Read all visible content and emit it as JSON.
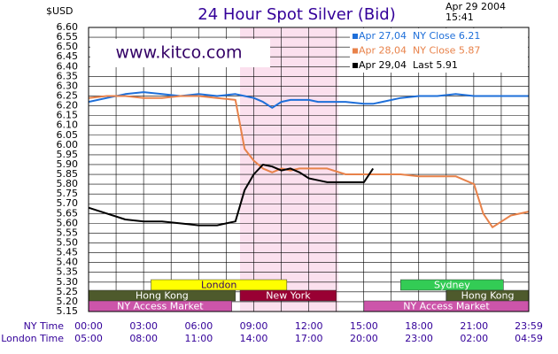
{
  "chart_data": {
    "type": "line",
    "title": "24 Hour Spot Silver (Bid)",
    "unit": "$USD",
    "date": "Apr 29 2004",
    "time": "15:41",
    "watermark": "www.kitco.com",
    "xlabel": "NY Time",
    "x2label": "London Time",
    "x": [
      0,
      1,
      2,
      3,
      4,
      5,
      6,
      7,
      8,
      8.5,
      9,
      9.5,
      10,
      10.5,
      11,
      11.5,
      12,
      12.5,
      13,
      14,
      15,
      15.5,
      16,
      17,
      18,
      19,
      20,
      21,
      21.5,
      22,
      22.5,
      23,
      23.98
    ],
    "series": [
      {
        "name": "Apr 27,04  NY Close 6.21",
        "color": "#1e6fd9",
        "values": [
          6.22,
          6.24,
          6.26,
          6.27,
          6.26,
          6.25,
          6.26,
          6.25,
          6.26,
          6.25,
          6.24,
          6.22,
          6.19,
          6.22,
          6.23,
          6.23,
          6.23,
          6.22,
          6.22,
          6.22,
          6.21,
          6.21,
          6.22,
          6.24,
          6.25,
          6.25,
          6.26,
          6.25,
          6.25,
          6.25,
          6.25,
          6.25,
          6.25
        ]
      },
      {
        "name": "Apr 28,04  NY Close 5.87",
        "color": "#e8824a",
        "values": [
          6.24,
          6.25,
          6.25,
          6.24,
          6.24,
          6.25,
          6.25,
          6.24,
          6.23,
          5.98,
          5.92,
          5.88,
          5.86,
          5.88,
          5.87,
          5.88,
          5.88,
          5.88,
          5.88,
          5.85,
          5.85,
          5.85,
          5.85,
          5.85,
          5.84,
          5.84,
          5.84,
          5.8,
          5.65,
          5.58,
          5.61,
          5.64,
          5.66
        ]
      },
      {
        "name": "Apr 29,04  Last 5.91",
        "color": "#000000",
        "values": [
          5.68,
          5.65,
          5.62,
          5.61,
          5.61,
          5.6,
          5.59,
          5.59,
          5.61,
          5.77,
          5.85,
          5.9,
          5.89,
          5.87,
          5.88,
          5.86,
          5.83,
          5.82,
          5.81,
          5.81,
          5.81,
          5.88,
          null,
          null,
          null,
          null,
          null,
          null,
          null,
          null,
          null,
          null,
          null
        ]
      }
    ],
    "xlim": [
      0,
      23.98
    ],
    "xticks": [
      {
        "value": 0,
        "label": "00:00"
      },
      {
        "value": 3,
        "label": "03:00"
      },
      {
        "value": 6,
        "label": "06:00"
      },
      {
        "value": 9,
        "label": "09:00"
      },
      {
        "value": 12,
        "label": "12:00"
      },
      {
        "value": 15,
        "label": "15:00"
      },
      {
        "value": 18,
        "label": "18:00"
      },
      {
        "value": 21,
        "label": "21:00"
      },
      {
        "value": 23.98,
        "label": "23:59"
      }
    ],
    "x2ticks": [
      {
        "value": 0,
        "label": "05:00"
      },
      {
        "value": 3,
        "label": "08:00"
      },
      {
        "value": 6,
        "label": "11:00"
      },
      {
        "value": 9,
        "label": "14:00"
      },
      {
        "value": 12,
        "label": "17:00"
      },
      {
        "value": 15,
        "label": "20:00"
      },
      {
        "value": 18,
        "label": "23:00"
      },
      {
        "value": 21,
        "label": "02:00"
      },
      {
        "value": 23.98,
        "label": "04:59"
      }
    ],
    "ylim": [
      5.15,
      6.6
    ],
    "yticks": [
      {
        "value": 6.6,
        "label": "6.60"
      },
      6.55,
      {
        "value": 6.5,
        "label": "6.50"
      },
      6.45,
      {
        "value": 6.4,
        "label": "6.40"
      },
      6.35,
      {
        "value": 6.3,
        "label": "6.30"
      },
      6.25,
      {
        "value": 6.2,
        "label": "6.20"
      },
      6.15,
      {
        "value": 6.1,
        "label": "6.10"
      },
      6.05,
      {
        "value": 6.0,
        "label": "6.00"
      },
      5.95,
      {
        "value": 5.9,
        "label": "5.90"
      },
      5.85,
      {
        "value": 5.8,
        "label": "5.80"
      },
      5.75,
      {
        "value": 5.7,
        "label": "5.70"
      },
      5.65,
      {
        "value": 5.6,
        "label": "5.60"
      },
      5.55,
      {
        "value": 5.5,
        "label": "5.50"
      },
      5.45,
      {
        "value": 5.4,
        "label": "5.40"
      },
      5.35,
      {
        "value": 5.3,
        "label": "5.30"
      },
      5.25,
      {
        "value": 5.2,
        "label": "5.20"
      },
      5.15
    ],
    "grid": true,
    "highlight": {
      "start": 8.25,
      "end": 13.6,
      "color": "#fbe0ee"
    },
    "sessions": [
      {
        "label": "London",
        "start": 3.4,
        "end": 10.8,
        "row": 0,
        "color": "#ffff00",
        "text_color": "#330066"
      },
      {
        "label": "Sydney",
        "start": 17,
        "end": 22.6,
        "row": 0,
        "color": "#33cc55",
        "text_color": "#ffffff"
      },
      {
        "label": "Hong Kong",
        "start": 0,
        "end": 8.0,
        "row": 1,
        "color": "#4e5a2c",
        "text_color": "#ffffff"
      },
      {
        "label": "New York",
        "start": 8.25,
        "end": 13.5,
        "row": 1,
        "color": "#990033",
        "text_color": "#ffffff"
      },
      {
        "label": "Hong Kong",
        "start": 19.5,
        "end": 23.98,
        "row": 1,
        "color": "#4e5a2c",
        "text_color": "#ffffff"
      },
      {
        "label": "NY Access Market",
        "start": 0,
        "end": 7.8,
        "row": 2,
        "color": "#cc55aa",
        "text_color": "#ffffff"
      },
      {
        "label": "NY Access Market",
        "start": 15,
        "end": 23.98,
        "row": 2,
        "color": "#cc55aa",
        "text_color": "#ffffff"
      }
    ]
  }
}
